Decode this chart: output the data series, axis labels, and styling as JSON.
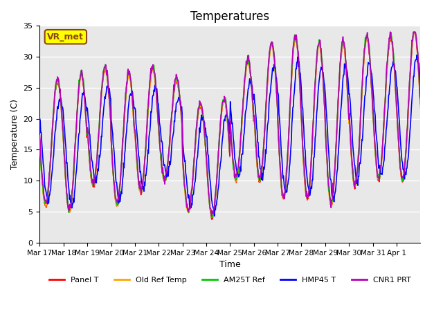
{
  "title": "Temperatures",
  "xlabel": "Time",
  "ylabel": "Temperature (C)",
  "ylim": [
    0,
    35
  ],
  "annotation_text": "VR_met",
  "annotation_box_color": "#FFFF00",
  "annotation_border_color": "#8B4513",
  "background_color": "#E8E8E8",
  "grid_color": "white",
  "series_names": [
    "Panel T",
    "Old Ref Temp",
    "AM25T Ref",
    "HMP45 T",
    "CNR1 PRT"
  ],
  "series_colors": [
    "#FF0000",
    "#FFA500",
    "#00CC00",
    "#0000FF",
    "#BB00BB"
  ],
  "series_lw": [
    1.2,
    1.2,
    1.2,
    1.2,
    1.2
  ],
  "xtick_labels": [
    "Mar 17",
    "Mar 18",
    "Mar 19",
    "Mar 20",
    "Mar 21",
    "Mar 22",
    "Mar 23",
    "Mar 24",
    "Mar 25",
    "Mar 26",
    "Mar 27",
    "Mar 28",
    "Mar 29",
    "Mar 30",
    "Mar 31",
    "Apr 1"
  ],
  "xtick_positions": [
    0,
    1,
    2,
    3,
    4,
    5,
    6,
    7,
    8,
    9,
    10,
    11,
    12,
    13,
    14,
    15
  ],
  "ytick_values": [
    0,
    5,
    10,
    15,
    20,
    25,
    30,
    35
  ],
  "day_mins": [
    6,
    5,
    9,
    6,
    8,
    10,
    5,
    4,
    10,
    10,
    7,
    7,
    6,
    9,
    10,
    10
  ],
  "day_maxs": [
    26,
    27,
    28,
    27,
    28,
    26,
    22,
    23,
    29,
    32,
    33,
    32,
    32,
    33,
    33,
    34
  ],
  "legend_ncol": 5,
  "figsize": [
    6.4,
    4.8
  ],
  "dpi": 100,
  "title_fontsize": 12,
  "n_days": 16,
  "pts_per_day": 48
}
